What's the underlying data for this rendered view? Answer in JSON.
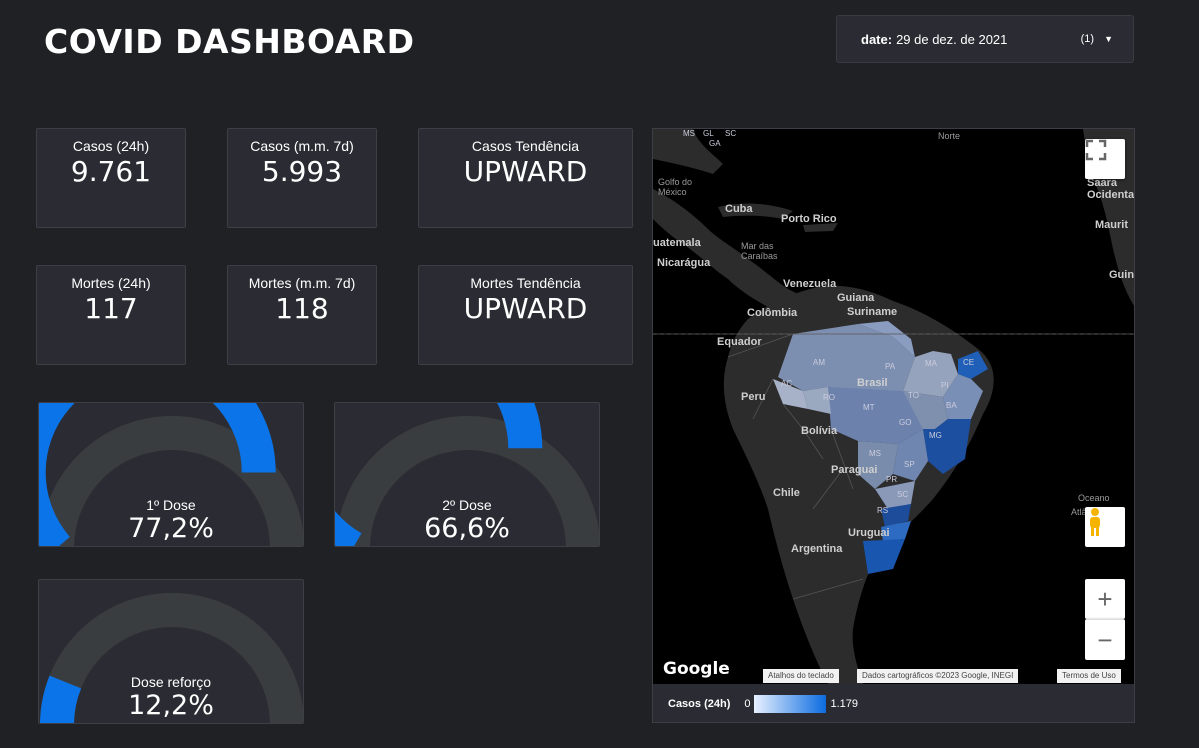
{
  "header": {
    "title": "COVID DASHBOARD"
  },
  "date_filter": {
    "label": "date:",
    "value": "29 de dez. de 2021",
    "count": "(1)"
  },
  "kpis": {
    "cases_24h": {
      "label": "Casos (24h)",
      "value": "9.761"
    },
    "cases_mm7": {
      "label": "Casos (m.m. 7d)",
      "value": "5.993"
    },
    "cases_trend": {
      "label": "Casos Tendência",
      "value": "UPWARD"
    },
    "deaths_24h": {
      "label": "Mortes (24h)",
      "value": "117"
    },
    "deaths_mm7": {
      "label": "Mortes (m.m. 7d)",
      "value": "118"
    },
    "deaths_trend": {
      "label": "Mortes Tendência",
      "value": "UPWARD"
    }
  },
  "gauges": {
    "dose1": {
      "label": "1º Dose",
      "value": "77,2%",
      "fraction": 0.772
    },
    "dose2": {
      "label": "2º Dose",
      "value": "66,6%",
      "fraction": 0.666
    },
    "booster": {
      "label": "Dose reforço",
      "value": "12,2%",
      "fraction": 0.122
    }
  },
  "colors": {
    "accent": "#0b74e8",
    "track": "#3a3d40",
    "card": "#2b2c33",
    "background": "#202124"
  },
  "map": {
    "labels": {
      "norte": "Norte",
      "cuba": "Cuba",
      "porto_rico": "Porto Rico",
      "golfo": "Golfo do México",
      "guatemala": "uatemala",
      "mar_caraibas": "Mar das Caraíbas",
      "nicaragua": "Nicarágua",
      "venezuela": "Venezuela",
      "guiana": "Guiana",
      "suriname": "Suriname",
      "colombia": "Colômbia",
      "equador": "Equador",
      "brasil": "Brasil",
      "peru": "Peru",
      "bolivia": "Bolívia",
      "paraguai": "Paraguai",
      "chile": "Chile",
      "argentina": "Argentina",
      "uruguai": "Uruguai",
      "saara": "Saara Ocidenta",
      "mauritania": "Maurit",
      "guine": "Guin",
      "oceano": "Oceano",
      "atlantico": "Atlân",
      "ms": "MS",
      "gl": "GL",
      "sc": "SC",
      "ga": "GA",
      "amap": "AM",
      "pa": "PA",
      "ma": "MA",
      "ce": "CE",
      "rn": "RN",
      "pi": "PI",
      "ac": "AC",
      "ro": "RO",
      "mt": "MT",
      "to": "TO",
      "ba": "BA",
      "go": "GO",
      "mg": "MG",
      "ms2": "MS",
      "sp": "SP",
      "pr": "PR",
      "sc2": "SC",
      "rs": "RS",
      "ap": "AP",
      "se": "SE"
    },
    "google": "Google",
    "attribution": {
      "shortcuts": "Atalhos do teclado",
      "data": "Dados cartográficos ©2023 Google, INEGI",
      "terms": "Termos de Uso"
    },
    "controls": {
      "fullscreen_icon": "fullscreen-icon",
      "pegman_icon": "pegman-icon",
      "zoom_in": "+",
      "zoom_out": "−"
    },
    "legend": {
      "title": "Casos (24h)",
      "min": "0",
      "max": "1.179"
    }
  }
}
